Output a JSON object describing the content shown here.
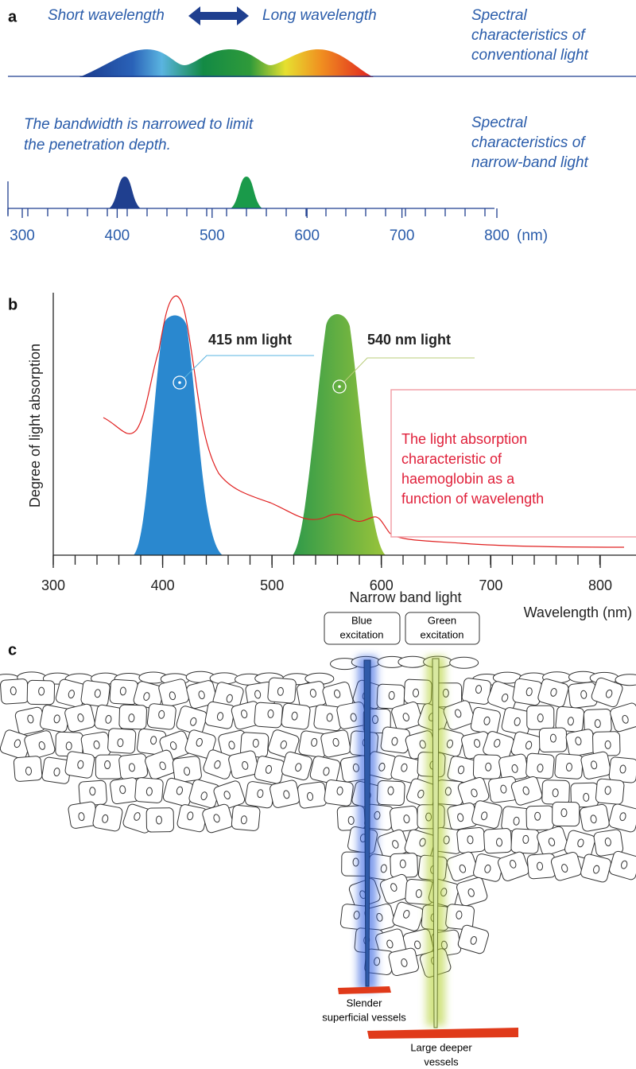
{
  "panel_a": {
    "label": "a",
    "short": "Short wavelength",
    "long": "Long wavelength",
    "conventional": [
      "Spectral",
      "characteristics of",
      "conventional light"
    ],
    "narrow_note": [
      "The bandwidth is narrowed to limit",
      "the penetration depth."
    ],
    "narrow": [
      "Spectral",
      "characteristics of",
      "narrow-band light"
    ],
    "axis": {
      "ticks": [
        300,
        400,
        500,
        600,
        700,
        800
      ],
      "unit": "(nm)"
    }
  },
  "panel_b": {
    "label": "b",
    "y_label": "Degree of light absorption",
    "x_label": "Wavelength (nm)",
    "xticks": [
      300,
      400,
      500,
      600,
      700,
      800
    ],
    "blue_label": "415 nm light",
    "green_label": "540 nm light",
    "note": [
      "The light absorption",
      "characteristic of",
      "haemoglobin as a",
      "function of wavelength"
    ]
  },
  "panel_c": {
    "label": "c",
    "title": "Narrow band light",
    "blue_box": [
      "Blue",
      "excitation"
    ],
    "green_box": [
      "Green",
      "excitation"
    ],
    "slender": [
      "Slender",
      "superficial vessels"
    ],
    "large": [
      "Large deeper",
      "vessels"
    ]
  }
}
